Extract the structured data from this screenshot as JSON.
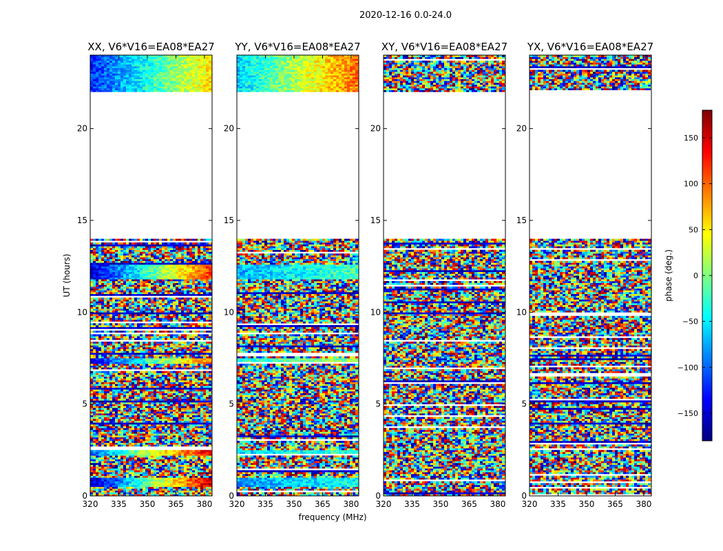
{
  "chart_data": {
    "type": "heatmap",
    "title": "2020-12-16 0.0-24.0",
    "xlabel": "frequency (MHz)",
    "ylabel": "UT (hours)",
    "xlim": [
      320,
      384
    ],
    "ylim": [
      0,
      24
    ],
    "xticks": [
      320,
      335,
      350,
      365,
      380
    ],
    "yticks": [
      0,
      5,
      10,
      15,
      20
    ],
    "grid": false,
    "no_data_gap_hours": [
      14.0,
      22.0
    ],
    "colorbar": {
      "label": "phase (deg.)",
      "range": [
        -180,
        180
      ],
      "ticks": [
        -150,
        -100,
        -50,
        0,
        50,
        100,
        150
      ],
      "colormap": "jet",
      "stops": [
        "#00007f",
        "#0000ff",
        "#007fff",
        "#00ffff",
        "#7fff7f",
        "#ffff00",
        "#ff7f00",
        "#ff0000",
        "#7f0000"
      ]
    },
    "panels": [
      {
        "name": "XX, V6*V16=EA08*EA27",
        "coherent_bands": [
          {
            "ut": [
              0.5,
              1.0
            ],
            "phase_start": -160,
            "phase_end": 160
          },
          {
            "ut": [
              2.15,
              2.5
            ],
            "phase_start": -100,
            "phase_end": 150
          },
          {
            "ut": [
              7.2,
              7.5
            ],
            "phase_start": -140,
            "phase_end": 100
          },
          {
            "ut": [
              11.8,
              12.6
            ],
            "phase_start": -150,
            "phase_end": 120
          },
          {
            "ut": [
              22.0,
              24.0
            ],
            "phase_start": -120,
            "phase_end": 60
          }
        ]
      },
      {
        "name": "YY, V6*V16=EA08*EA27",
        "coherent_bands": [
          {
            "ut": [
              0.5,
              1.0
            ],
            "phase_start": -80,
            "phase_end": -40
          },
          {
            "ut": [
              2.15,
              2.5
            ],
            "phase_start": -60,
            "phase_end": -20
          },
          {
            "ut": [
              7.2,
              7.5
            ],
            "phase_start": -30,
            "phase_end": 10
          },
          {
            "ut": [
              11.8,
              12.6
            ],
            "phase_start": -70,
            "phase_end": -20
          },
          {
            "ut": [
              22.0,
              24.0
            ],
            "phase_start": -60,
            "phase_end": 100
          }
        ]
      },
      {
        "name": "XY, V6*V16=EA08*EA27",
        "coherent_bands": []
      },
      {
        "name": "YX, V6*V16=EA08*EA27",
        "coherent_bands": []
      }
    ]
  }
}
